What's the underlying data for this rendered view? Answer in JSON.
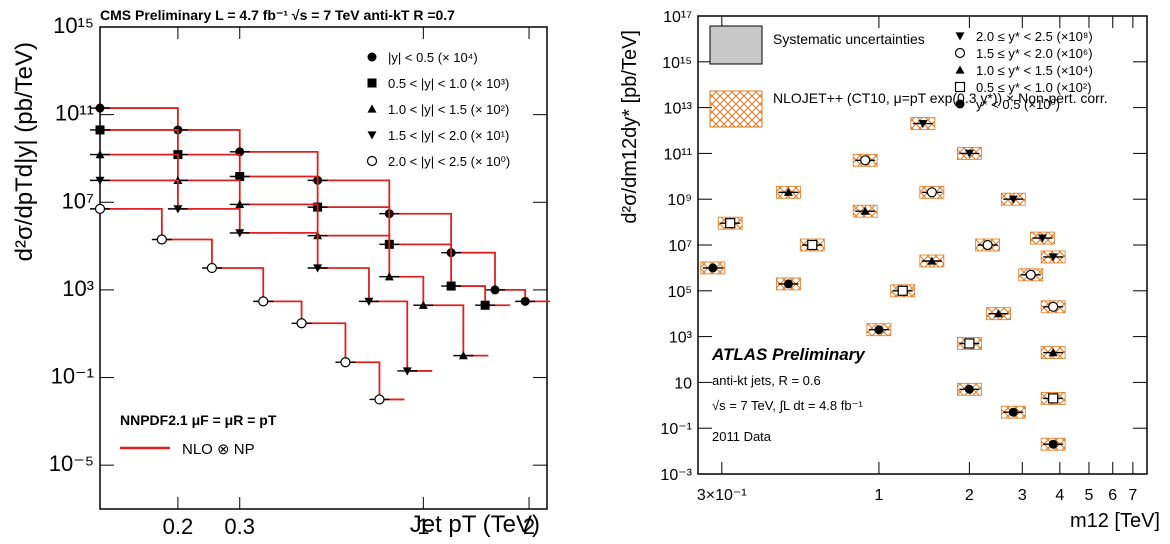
{
  "chart_data": [
    {
      "type": "line",
      "title": "CMS Preliminary L = 4.7 fb⁻¹  √s = 7 TeV anti-kT R =0.7",
      "xlabel": "Jet pT (TeV)",
      "ylabel": "d²σ/dpTd|y| (pb/TeV)",
      "xscale": "log",
      "yscale": "log",
      "xlim": [
        0.12,
        2.25
      ],
      "ylim": [
        1e-07,
        1000000000000000.0
      ],
      "x_ticks": [
        {
          "v": 0.2,
          "label": "0.2"
        },
        {
          "v": 0.3,
          "label": "0.3"
        },
        {
          "v": 1,
          "label": "1"
        },
        {
          "v": 2,
          "label": "2"
        }
      ],
      "y_ticks": [
        {
          "v": 1e-05,
          "label": "10⁻⁵"
        },
        {
          "v": 0.1,
          "label": "10⁻¹"
        },
        {
          "v": 1000.0,
          "label": "10³"
        },
        {
          "v": 10000000.0,
          "label": "10⁷"
        },
        {
          "v": 100000000000.0,
          "label": "10¹¹"
        },
        {
          "v": 1000000000000000.0,
          "label": "10¹⁵"
        }
      ],
      "legend_position": "top-right",
      "series": [
        {
          "name": "|y| < 0.5 (× 10⁴)",
          "marker": "circle-filled",
          "x": [
            0.12,
            0.2,
            0.3,
            0.5,
            0.8,
            1.2,
            1.6,
            1.95
          ],
          "y": [
            200000000000.0,
            20000000000.0,
            2000000000.0,
            100000000.0,
            3000000.0,
            50000.0,
            1000.0,
            300.0
          ]
        },
        {
          "name": "0.5 < |y| < 1.0 (× 10³)",
          "marker": "square-filled",
          "x": [
            0.12,
            0.2,
            0.3,
            0.5,
            0.8,
            1.2,
            1.5
          ],
          "y": [
            20000000000.0,
            1500000000.0,
            150000000.0,
            6000000.0,
            120000.0,
            1500.0,
            200.0
          ]
        },
        {
          "name": "1.0 < |y| < 1.5 (× 10²)",
          "marker": "triangle-up",
          "x": [
            0.12,
            0.2,
            0.3,
            0.5,
            0.8,
            1.0,
            1.3
          ],
          "y": [
            1500000000.0,
            100000000.0,
            8000000.0,
            300000.0,
            4000.0,
            200.0,
            1
          ]
        },
        {
          "name": "1.5 < |y| < 2.0 (× 10¹)",
          "marker": "triangle-down",
          "x": [
            0.12,
            0.2,
            0.3,
            0.5,
            0.7,
            0.9
          ],
          "y": [
            100000000.0,
            5000000.0,
            400000.0,
            10000.0,
            300.0,
            0.2
          ]
        },
        {
          "name": "2.0 < |y| < 2.5 (× 10⁰)",
          "marker": "circle-open",
          "x": [
            0.12,
            0.18,
            0.25,
            0.35,
            0.45,
            0.6,
            0.75
          ],
          "y": [
            5000000.0,
            200000.0,
            10000.0,
            300.0,
            30.0,
            0.5,
            0.01
          ]
        }
      ],
      "annotations": {
        "pdf_label": "NNPDF2.1 μF = μR = pT",
        "theory_label": "NLO ⊗ NP",
        "theory_color": "#e02020"
      }
    },
    {
      "type": "line",
      "xlabel": "m12 [TeV]",
      "ylabel": "d²σ/dm12dy* [pb/TeV]",
      "xscale": "log",
      "yscale": "log",
      "xlim": [
        0.25,
        7.8
      ],
      "ylim": [
        0.001,
        1e+17
      ],
      "x_ticks": [
        {
          "v": 0.3,
          "label": "3×10⁻¹"
        },
        {
          "v": 1,
          "label": "1"
        },
        {
          "v": 2,
          "label": "2"
        },
        {
          "v": 3,
          "label": "3"
        },
        {
          "v": 4,
          "label": "4"
        },
        {
          "v": 5,
          "label": "5"
        },
        {
          "v": 6,
          "label": "6"
        },
        {
          "v": 7,
          "label": "7"
        }
      ],
      "y_ticks": [
        {
          "v": 0.001,
          "label": "10⁻³"
        },
        {
          "v": 0.1,
          "label": "10⁻¹"
        },
        {
          "v": 10,
          "label": "10"
        },
        {
          "v": 1000.0,
          "label": "10³"
        },
        {
          "v": 100000.0,
          "label": "10⁵"
        },
        {
          "v": 10000000.0,
          "label": "10⁷"
        },
        {
          "v": 1000000000.0,
          "label": "10⁹"
        },
        {
          "v": 100000000000.0,
          "label": "10¹¹"
        },
        {
          "v": 10000000000000.0,
          "label": "10¹³"
        },
        {
          "v": 1000000000000000.0,
          "label": "10¹⁵"
        },
        {
          "v": 1e+17,
          "label": "10¹⁷"
        }
      ],
      "legend_position": "top-right",
      "series": [
        {
          "name": "2.0 ≤ y* < 2.5  (×10⁸)",
          "marker": "triangle-down",
          "x": [
            1.4,
            2.0,
            2.8,
            3.5,
            3.8
          ],
          "y": [
            2000000000000.0,
            100000000000.0,
            1000000000.0,
            20000000.0,
            3000000.0
          ]
        },
        {
          "name": "1.5 ≤ y* < 2.0  (×10⁶)",
          "marker": "circle-open",
          "x": [
            0.9,
            1.5,
            2.3,
            3.2,
            3.8
          ],
          "y": [
            50000000000.0,
            2000000000.0,
            10000000.0,
            500000.0,
            20000.0
          ]
        },
        {
          "name": "1.0 ≤ y* < 1.5  (×10⁴)",
          "marker": "triangle-up",
          "x": [
            0.5,
            0.9,
            1.5,
            2.5,
            3.8
          ],
          "y": [
            2000000000.0,
            300000000.0,
            2000000.0,
            10000.0,
            200.0
          ]
        },
        {
          "name": "0.5 ≤ y* < 1.0  (×10²)",
          "marker": "square-open",
          "x": [
            0.32,
            0.6,
            1.2,
            2.0,
            3.8
          ],
          "y": [
            90000000.0,
            10000000.0,
            100000.0,
            500.0,
            2
          ]
        },
        {
          "name": "y* < 0.5  (×10⁰)",
          "marker": "circle-filled",
          "x": [
            0.28,
            0.5,
            1.0,
            2.0,
            2.8,
            3.8
          ],
          "y": [
            1000000.0,
            200000.0,
            2000.0,
            5,
            0.5,
            0.02
          ]
        }
      ],
      "annotations": {
        "systematic_label": "Systematic uncertainties",
        "nlo_label": "NLOJET++ (CT10, μ=pT exp(0.3 y*)) × Non-pert. corr.",
        "atlas_label": "ATLAS Preliminary",
        "jets_label": "anti-kt jets, R = 0.6",
        "energy_label": "√s = 7 TeV, ∫L dt = 4.8 fb⁻¹",
        "data_label": "2011 Data",
        "nlo_color": "#e07820"
      }
    }
  ]
}
